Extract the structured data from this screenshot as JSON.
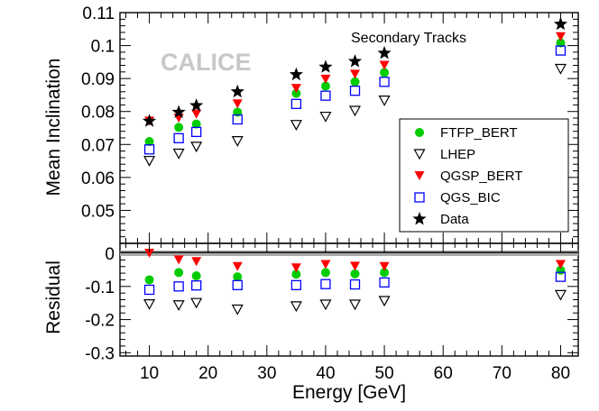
{
  "chart_data": {
    "type": "scatter",
    "panels": {
      "main": {
        "ylabel": "Mean Inclination",
        "ylim": [
          0.04,
          0.11
        ],
        "yticks": [
          0.05,
          0.06,
          0.07,
          0.08,
          0.09,
          0.1,
          0.11
        ],
        "ytick_labels": [
          "0.05",
          "0.06",
          "0.07",
          "0.08",
          "0.09",
          "0.1",
          "0.11"
        ]
      },
      "residual": {
        "ylabel": "Residual",
        "ylim": [
          -0.31,
          0.03
        ],
        "yticks": [
          0,
          -0.1,
          -0.2,
          -0.3
        ],
        "ytick_labels": [
          "0",
          "-0.1",
          "-0.2",
          "-0.3"
        ],
        "reference_line": 0
      }
    },
    "x": {
      "label": "Energy [GeV]",
      "lim": [
        5,
        83
      ],
      "ticks": [
        10,
        20,
        30,
        40,
        50,
        60,
        70,
        80
      ],
      "tick_labels": [
        "10",
        "20",
        "30",
        "40",
        "50",
        "60",
        "70",
        "80"
      ]
    },
    "x_values": [
      10,
      15,
      18,
      25,
      35,
      40,
      45,
      50,
      80
    ],
    "series": [
      {
        "name": "FTFP_BERT",
        "marker": "circle",
        "color": "#00cc00",
        "main": [
          0.0709,
          0.0752,
          0.0762,
          0.0798,
          0.0855,
          0.0877,
          0.089,
          0.0918,
          0.1008
        ],
        "residual": [
          -0.08,
          -0.058,
          -0.068,
          -0.071,
          -0.063,
          -0.058,
          -0.062,
          -0.058,
          -0.051
        ]
      },
      {
        "name": "LHEP",
        "marker": "triangle-down-open",
        "color": "#000000",
        "main": [
          0.065,
          0.0672,
          0.0693,
          0.071,
          0.0759,
          0.0784,
          0.0802,
          0.0833,
          0.0929
        ],
        "residual": [
          -0.154,
          -0.157,
          -0.15,
          -0.17,
          -0.16,
          -0.155,
          -0.155,
          -0.144,
          -0.126
        ]
      },
      {
        "name": "QGSP_BERT",
        "marker": "triangle-down-filled",
        "color": "#ff0000",
        "main": [
          0.0771,
          0.078,
          0.0792,
          0.0823,
          0.087,
          0.0898,
          0.0913,
          0.094,
          0.1027
        ],
        "residual": [
          0.0,
          -0.02,
          -0.025,
          -0.04,
          -0.044,
          -0.034,
          -0.039,
          -0.04,
          -0.034
        ]
      },
      {
        "name": "QGS_BIC",
        "marker": "square-open",
        "color": "#0000ff",
        "main": [
          0.0685,
          0.0719,
          0.0738,
          0.0776,
          0.0823,
          0.0848,
          0.0863,
          0.089,
          0.0985
        ],
        "residual": [
          -0.11,
          -0.1,
          -0.097,
          -0.096,
          -0.096,
          -0.093,
          -0.094,
          -0.088,
          -0.071
        ]
      },
      {
        "name": "Data",
        "marker": "star",
        "color": "#000000",
        "main": [
          0.0771,
          0.0798,
          0.0818,
          0.086,
          0.0912,
          0.0935,
          0.0952,
          0.0977,
          0.1065
        ],
        "residual": null
      }
    ],
    "legend_position": "right",
    "annotations": [
      "Secondary Tracks"
    ],
    "watermark": "CALICE",
    "grid": false
  }
}
